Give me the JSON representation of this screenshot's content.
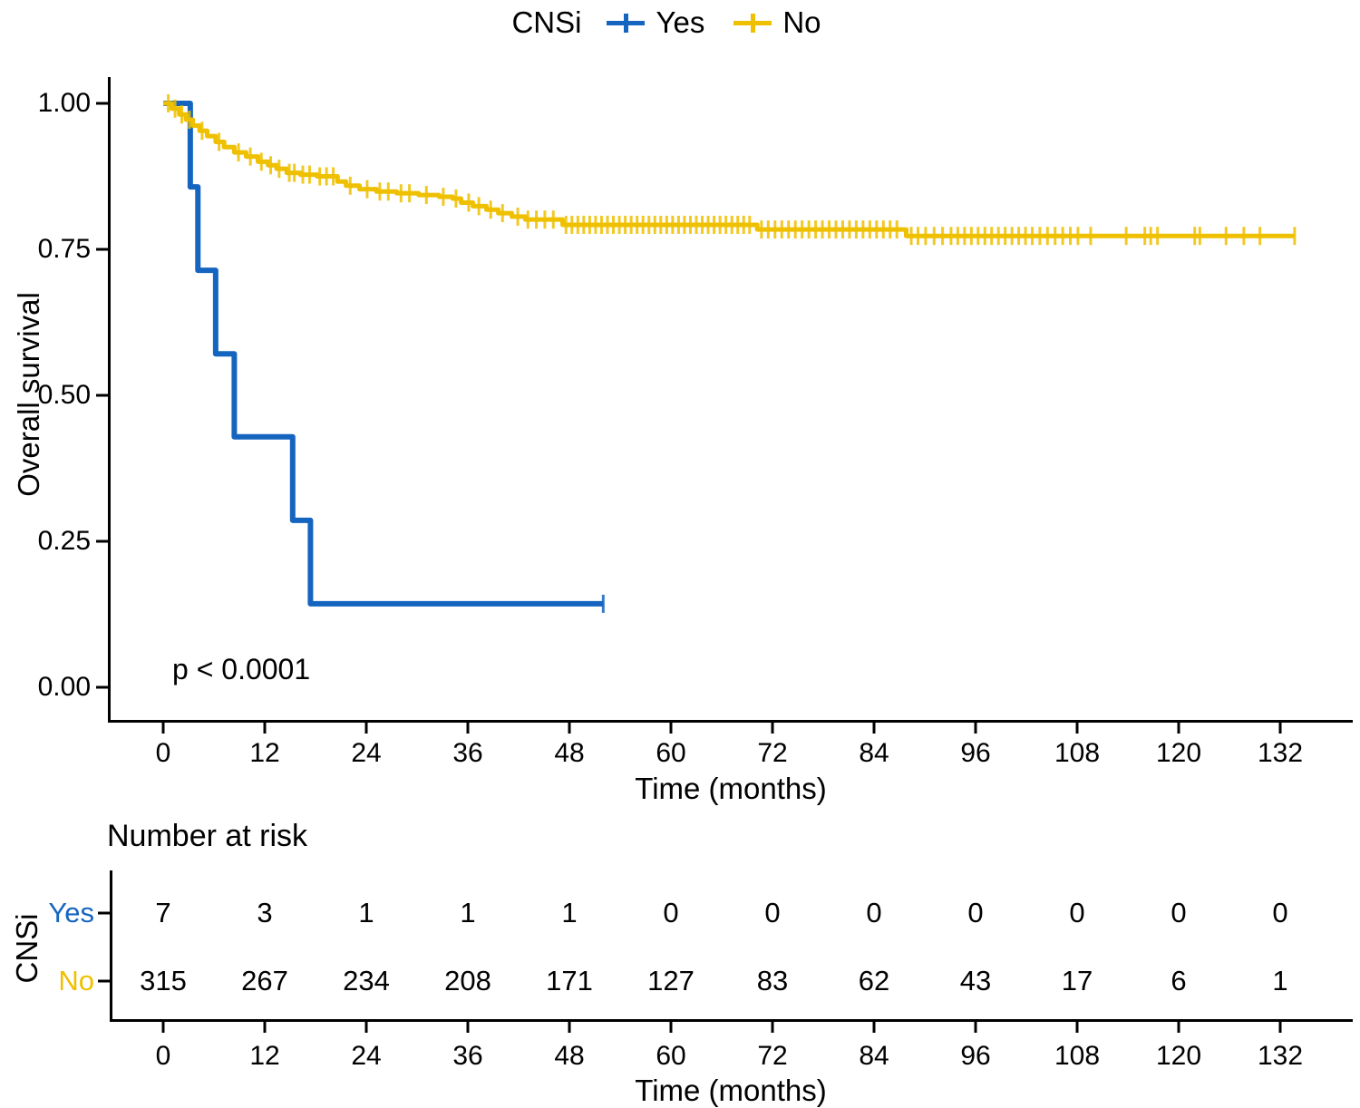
{
  "figure": {
    "legend": {
      "group_label": "CNSi",
      "items": [
        {
          "label": "Yes",
          "color": "#1565c0"
        },
        {
          "label": "No",
          "color": "#efc000"
        }
      ]
    },
    "y_axis": {
      "title": "Overall survival",
      "tick_labels": [
        "1.00",
        "0.75",
        "0.50",
        "0.25",
        "0.00"
      ]
    },
    "x_axis": {
      "title": "Time (months)",
      "tick_labels": [
        "0",
        "12",
        "24",
        "36",
        "48",
        "60",
        "72",
        "84",
        "96",
        "108",
        "120",
        "132"
      ]
    },
    "annotation": {
      "p_value": "p < 0.0001"
    },
    "risk_table": {
      "heading": "Number at risk",
      "group_label": "CNSi",
      "x_axis_title": "Time (months)",
      "tick_labels": [
        "0",
        "12",
        "24",
        "36",
        "48",
        "60",
        "72",
        "84",
        "96",
        "108",
        "120",
        "132"
      ],
      "rows": [
        {
          "label": "Yes",
          "color": "#1565c0",
          "counts": [
            7,
            3,
            1,
            1,
            1,
            0,
            0,
            0,
            0,
            0,
            0,
            0
          ]
        },
        {
          "label": "No",
          "color": "#efc000",
          "counts": [
            315,
            267,
            234,
            208,
            171,
            127,
            83,
            62,
            43,
            17,
            6,
            1
          ]
        }
      ]
    }
  },
  "chart_data": {
    "type": "line",
    "subtype": "kaplan-meier-step",
    "title": "",
    "xlabel": "Time (months)",
    "ylabel": "Overall survival",
    "xlim": [
      0,
      140.5
    ],
    "ylim": [
      0,
      1.0
    ],
    "x_ticks": [
      0,
      12,
      24,
      36,
      48,
      60,
      72,
      84,
      96,
      108,
      120,
      132
    ],
    "y_ticks": [
      1.0,
      0.75,
      0.5,
      0.25,
      0.0
    ],
    "grid": false,
    "legend_position": "top",
    "p_value": "p < 0.0001",
    "series": [
      {
        "name": "Yes",
        "color": "#1565c0",
        "line_width": 6,
        "end_time": 52,
        "steps": [
          [
            0,
            1.0
          ],
          [
            3.2,
            0.857
          ],
          [
            4.1,
            0.714
          ],
          [
            6.2,
            0.571
          ],
          [
            8.4,
            0.429
          ],
          [
            15.3,
            0.286
          ],
          [
            17.4,
            0.143
          ]
        ],
        "censor_times": [
          52
        ]
      },
      {
        "name": "No",
        "color": "#efc000",
        "line_width": 5,
        "end_time": 133.7,
        "steps": [
          [
            0,
            1.0
          ],
          [
            1.0,
            0.991
          ],
          [
            1.9,
            0.981
          ],
          [
            2.7,
            0.972
          ],
          [
            3.5,
            0.962
          ],
          [
            4.3,
            0.953
          ],
          [
            5.2,
            0.944
          ],
          [
            6.2,
            0.934
          ],
          [
            7.2,
            0.925
          ],
          [
            8.4,
            0.916
          ],
          [
            9.8,
            0.909
          ],
          [
            11.2,
            0.9
          ],
          [
            12.4,
            0.894
          ],
          [
            13.4,
            0.888
          ],
          [
            14.6,
            0.881
          ],
          [
            16.2,
            0.878
          ],
          [
            18.2,
            0.875
          ],
          [
            20.6,
            0.866
          ],
          [
            21.6,
            0.859
          ],
          [
            23.2,
            0.853
          ],
          [
            25.2,
            0.849
          ],
          [
            27.6,
            0.846
          ],
          [
            30.2,
            0.843
          ],
          [
            32.6,
            0.84
          ],
          [
            34.2,
            0.837
          ],
          [
            35.2,
            0.83
          ],
          [
            36.6,
            0.824
          ],
          [
            38.2,
            0.818
          ],
          [
            39.6,
            0.812
          ],
          [
            41.2,
            0.806
          ],
          [
            42.8,
            0.801
          ],
          [
            47.2,
            0.792
          ],
          [
            70.2,
            0.784
          ],
          [
            87.8,
            0.773
          ]
        ],
        "censor_times": [
          0.6,
          1.4,
          2.2,
          3.1,
          4.6,
          6.6,
          8.9,
          10.3,
          11.6,
          12.7,
          13.7,
          14.9,
          15.5,
          16.5,
          17.3,
          18.5,
          19.3,
          20.1,
          22.1,
          24.1,
          25.6,
          26.6,
          28.1,
          29.1,
          31.1,
          33.1,
          34.6,
          36.1,
          37.3,
          38.7,
          40.1,
          41.9,
          43.1,
          44.1,
          45.1,
          46.1,
          47.6,
          48.3,
          49.0,
          49.7,
          50.4,
          51.1,
          51.8,
          52.5,
          53.2,
          53.9,
          54.6,
          55.3,
          56.0,
          56.7,
          57.4,
          58.1,
          58.8,
          59.5,
          60.2,
          60.9,
          61.6,
          62.3,
          63.0,
          63.7,
          64.4,
          65.1,
          65.8,
          66.5,
          67.2,
          67.9,
          68.6,
          69.3,
          70.7,
          71.5,
          72.3,
          73.1,
          73.9,
          74.7,
          75.5,
          76.3,
          77.1,
          77.9,
          78.7,
          79.5,
          80.3,
          81.1,
          81.9,
          82.7,
          83.5,
          84.3,
          85.1,
          85.9,
          86.7,
          88.4,
          89.2,
          90.1,
          91.1,
          92.1,
          93.1,
          93.9,
          94.7,
          95.5,
          96.3,
          97.1,
          97.9,
          98.7,
          99.5,
          100.3,
          101.1,
          101.9,
          102.7,
          103.6,
          104.5,
          105.4,
          106.3,
          107.2,
          108.1,
          109.6,
          113.8,
          116.0,
          116.7,
          117.5,
          121.9,
          122.5,
          125.6,
          127.7,
          129.6,
          133.7
        ]
      }
    ],
    "risk_table": {
      "heading": "Number at risk",
      "rows": [
        {
          "name": "Yes",
          "counts": [
            7,
            3,
            1,
            1,
            1,
            0,
            0,
            0,
            0,
            0,
            0,
            0
          ]
        },
        {
          "name": "No",
          "counts": [
            315,
            267,
            234,
            208,
            171,
            127,
            83,
            62,
            43,
            17,
            6,
            1
          ]
        }
      ]
    }
  }
}
